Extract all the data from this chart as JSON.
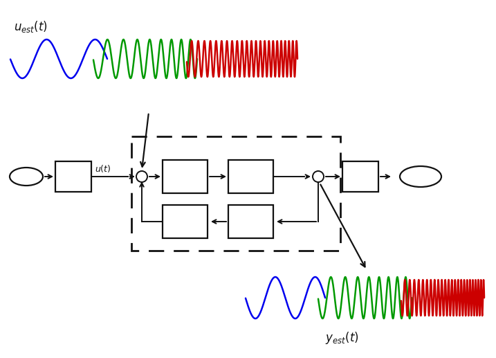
{
  "fig_width": 7.17,
  "fig_height": 5.17,
  "dpi": 100,
  "bg_color": "#ffffff",
  "u_label": "$u_{est}(t)$",
  "y_label": "$y_{est}(t)$",
  "ut_label": "$u(t)$",
  "blue_color": "#0000ee",
  "green_color": "#009900",
  "red_color": "#cc0000",
  "black_color": "#111111"
}
